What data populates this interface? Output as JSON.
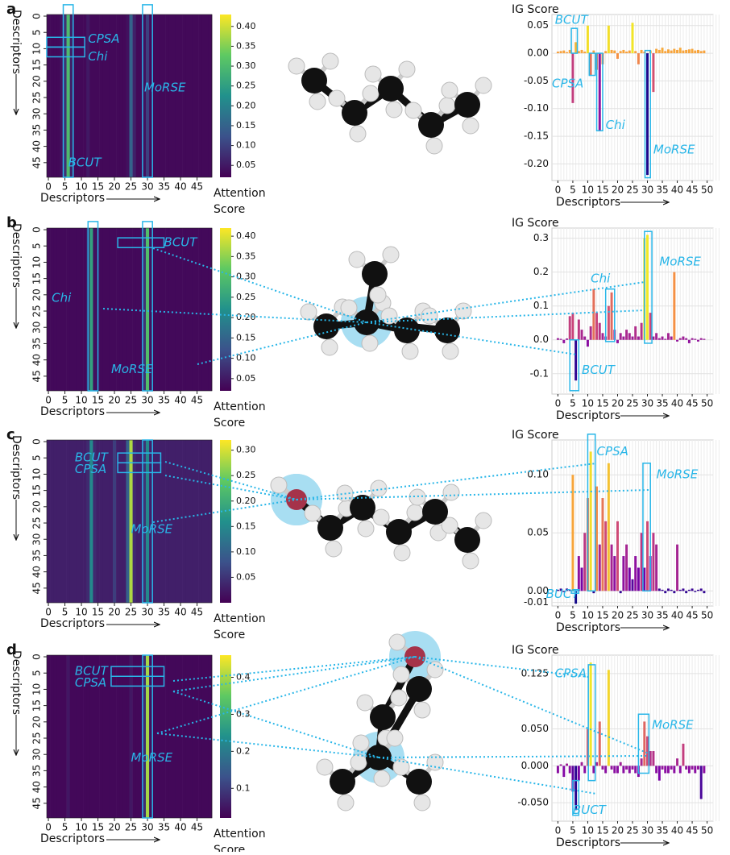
{
  "chart_data": [
    {
      "type": "heatmap",
      "panel": "a",
      "xlabel": "Descriptors",
      "ylabel": "Descriptors",
      "colorbar_label": "Attention Score",
      "xlim": [
        -0.5,
        49.5
      ],
      "ylim": [
        -0.5,
        49.5
      ],
      "xticks": [
        0,
        5,
        10,
        15,
        20,
        25,
        30,
        35,
        40,
        45
      ],
      "yticks": [
        0,
        5,
        10,
        15,
        20,
        25,
        30,
        35,
        40,
        45
      ],
      "values": [
        0.03,
        0.03,
        0.03,
        0.03,
        0.04,
        0.08,
        0.3,
        0.06,
        0.03,
        0.03,
        0.03,
        0.03,
        0.05,
        0.03,
        0.03,
        0.03,
        0.03,
        0.03,
        0.03,
        0.03,
        0.03,
        0.03,
        0.03,
        0.03,
        0.04,
        0.15,
        0.06,
        0.03,
        0.03,
        0.04,
        0.1,
        0.03,
        0.03,
        0.03,
        0.03,
        0.03,
        0.03,
        0.03,
        0.03,
        0.03,
        0.03,
        0.03,
        0.03,
        0.03,
        0.03,
        0.03,
        0.03,
        0.03,
        0.03,
        0.03
      ],
      "clim": [
        0.02,
        0.43
      ],
      "cticks": [
        0.05,
        {
          "value": 0.1,
          "label": "0.10"
        },
        0.15,
        {
          "value": 0.2,
          "label": "0.20"
        },
        0.25,
        {
          "value": 0.3,
          "label": "0.30"
        },
        0.35,
        {
          "value": 0.4,
          "label": "0.40"
        }
      ],
      "colormap": [
        "#440154",
        "#3b528b",
        "#21918c",
        "#5ec962",
        "#fde725"
      ],
      "annotations": [
        "CPSA",
        "Chi",
        "MoRSE",
        "BCUT"
      ]
    },
    {
      "type": "bar",
      "ylabel": "IG Score",
      "xlabel": "Descriptors",
      "xlim": [
        -2,
        52
      ],
      "xticks": [
        0,
        5,
        10,
        15,
        20,
        25,
        30,
        35,
        40,
        45,
        50
      ],
      "ylim": [
        -0.23,
        0.07
      ],
      "yticks": [
        0.05,
        {
          "value": 0,
          "label": "0.00"
        },
        -0.05,
        {
          "value": -0.1,
          "label": "-0.10"
        },
        -0.15,
        {
          "value": -0.2,
          "label": "-0.20"
        }
      ],
      "values": [
        0.003,
        0.004,
        0.005,
        0.002,
        0.006,
        -0.09,
        0.02,
        0.004,
        0.006,
        0.003,
        0.05,
        -0.04,
        0.005,
        -0.03,
        -0.14,
        -0.02,
        0.004,
        0.05,
        0.006,
        0.005,
        -0.01,
        0.004,
        0.006,
        0.003,
        0.005,
        0.055,
        0.004,
        -0.02,
        0.006,
        0.003,
        -0.22,
        0.005,
        -0.07,
        0.008,
        0.006,
        0.01,
        0.004,
        0.007,
        0.005,
        0.008,
        0.006,
        0.01,
        0.005,
        0.006,
        0.007,
        0.008,
        0.005,
        0.006,
        0.004,
        0.005
      ],
      "colormap": [
        "#0d0887",
        "#7e03a8",
        "#cc4778",
        "#f89540",
        "#f0f921"
      ],
      "grid": true,
      "annotations": [
        "BCUT",
        "CPSA",
        "Chi",
        "MoRSE"
      ]
    },
    {
      "type": "heatmap",
      "panel": "b",
      "xlabel": "Descriptors",
      "ylabel": "Descriptors",
      "colorbar_label": "Attention Score",
      "xlim": [
        -0.5,
        49.5
      ],
      "ylim": [
        -0.5,
        49.5
      ],
      "xticks": [
        0,
        5,
        10,
        15,
        20,
        25,
        30,
        35,
        40,
        45
      ],
      "yticks": [
        0,
        5,
        10,
        15,
        20,
        25,
        30,
        35,
        40,
        45
      ],
      "values": [
        0.03,
        0.03,
        0.03,
        0.03,
        0.03,
        0.03,
        0.03,
        0.03,
        0.03,
        0.03,
        0.03,
        0.03,
        0.06,
        0.25,
        0.04,
        0.03,
        0.03,
        0.03,
        0.03,
        0.03,
        0.03,
        0.03,
        0.03,
        0.03,
        0.03,
        0.03,
        0.03,
        0.03,
        0.03,
        0.08,
        0.3,
        0.04,
        0.03,
        0.03,
        0.03,
        0.03,
        0.03,
        0.03,
        0.03,
        0.03,
        0.03,
        0.03,
        0.03,
        0.03,
        0.03,
        0.03,
        0.03,
        0.03,
        0.03,
        0.03
      ],
      "clim": [
        0.02,
        0.42
      ],
      "cticks": [
        0.05,
        {
          "value": 0.1,
          "label": "0.10"
        },
        0.15,
        {
          "value": 0.2,
          "label": "0.20"
        },
        0.25,
        {
          "value": 0.3,
          "label": "0.30"
        },
        0.35,
        {
          "value": 0.4,
          "label": "0.40"
        }
      ],
      "colormap": [
        "#440154",
        "#3b528b",
        "#21918c",
        "#5ec962",
        "#fde725"
      ],
      "annotations": [
        "BCUT",
        "Chi",
        "MoRSE"
      ]
    },
    {
      "type": "bar",
      "ylabel": "IG Score",
      "xlabel": "Descriptors",
      "xlim": [
        -2,
        52
      ],
      "xticks": [
        0,
        5,
        10,
        15,
        20,
        25,
        30,
        35,
        40,
        45,
        50
      ],
      "ylim": [
        -0.16,
        0.33
      ],
      "yticks": [
        0.3,
        0.2,
        0.1,
        {
          "value": 0,
          "label": "0.0"
        },
        -0.1
      ],
      "values": [
        0.005,
        0.003,
        -0.01,
        0.004,
        0.07,
        0.08,
        -0.12,
        0.06,
        0.03,
        0.01,
        -0.02,
        0.04,
        0.15,
        0.08,
        0.05,
        0.02,
        0.01,
        0.1,
        0.14,
        0.03,
        -0.01,
        0.02,
        0.01,
        0.03,
        0.02,
        0.01,
        0.04,
        0.01,
        0.05,
        0.3,
        0.31,
        0.08,
        0.01,
        0.02,
        0.005,
        0.01,
        0.003,
        0.02,
        0.01,
        0.2,
        -0.005,
        0.005,
        0.01,
        0.005,
        -0.01,
        0.005,
        0.003,
        -0.005,
        0.005,
        0.003
      ],
      "colormap": [
        "#0d0887",
        "#7e03a8",
        "#cc4778",
        "#f89540",
        "#f0f921"
      ],
      "grid": true,
      "annotations": [
        "Chi",
        "MoRSE",
        "BCUT"
      ]
    },
    {
      "type": "heatmap",
      "panel": "c",
      "xlabel": "Descriptors",
      "ylabel": "Descriptors",
      "colorbar_label": "Attention Score",
      "xlim": [
        -0.5,
        49.5
      ],
      "ylim": [
        -0.5,
        49.5
      ],
      "xticks": [
        0,
        5,
        10,
        15,
        20,
        25,
        30,
        35,
        40,
        45
      ],
      "yticks": [
        0,
        5,
        10,
        15,
        20,
        25,
        30,
        35,
        40,
        45
      ],
      "values": [
        0.03,
        0.03,
        0.03,
        0.03,
        0.03,
        0.03,
        0.03,
        0.03,
        0.03,
        0.03,
        0.03,
        0.03,
        0.04,
        0.15,
        0.04,
        0.03,
        0.03,
        0.03,
        0.03,
        0.03,
        0.06,
        0.03,
        0.03,
        0.03,
        0.1,
        0.28,
        0.04,
        0.03,
        0.03,
        0.05,
        0.15,
        0.03,
        0.03,
        0.03,
        0.03,
        0.03,
        0.03,
        0.03,
        0.03,
        0.03,
        0.03,
        0.03,
        0.03,
        0.03,
        0.03,
        0.03,
        0.03,
        0.03,
        0.03,
        0.03
      ],
      "clim": [
        0.0,
        0.32
      ],
      "cticks": [
        0.05,
        {
          "value": 0.1,
          "label": "0.10"
        },
        0.15,
        {
          "value": 0.2,
          "label": "0.20"
        },
        0.25,
        {
          "value": 0.3,
          "label": "0.30"
        }
      ],
      "colormap": [
        "#440154",
        "#3b528b",
        "#21918c",
        "#5ec962",
        "#fde725"
      ],
      "annotations": [
        "BCUT",
        "CPSA",
        "MoRSE"
      ]
    },
    {
      "type": "bar",
      "ylabel": "IG Score",
      "xlabel": "Descriptors",
      "xlim": [
        -2,
        52
      ],
      "xticks": [
        0,
        5,
        10,
        15,
        20,
        25,
        30,
        35,
        40,
        45,
        50
      ],
      "ylim": [
        -0.013,
        0.13
      ],
      "yticks": [
        {
          "value": 0.1,
          "label": "0.10"
        },
        0.05,
        {
          "value": 0,
          "label": "0.00"
        },
        -0.01
      ],
      "values": [
        0.001,
        0.002,
        -0.001,
        0.002,
        0.001,
        0.1,
        -0.011,
        0.03,
        0.02,
        0.05,
        0.08,
        0.12,
        -0.002,
        0.09,
        0.04,
        0.08,
        0.06,
        0.11,
        0.04,
        0.03,
        0.06,
        -0.002,
        0.03,
        0.04,
        0.02,
        0.01,
        0.03,
        0.02,
        0.05,
        0.02,
        0.06,
        0.03,
        0.05,
        0.04,
        0.002,
        0.001,
        -0.002,
        0.002,
        0.001,
        -0.002,
        0.04,
        0.001,
        0.002,
        -0.002,
        0.001,
        0.002,
        -0.001,
        0.001,
        0.002,
        -0.002
      ],
      "colormap": [
        "#0d0887",
        "#7e03a8",
        "#cc4778",
        "#f89540",
        "#f0f921"
      ],
      "grid": true,
      "annotations": [
        "CPSA",
        "MoRSE",
        "BUCT"
      ]
    },
    {
      "type": "heatmap",
      "panel": "d",
      "xlabel": "Descriptors",
      "ylabel": "Descriptors",
      "colorbar_label": "Attention Score",
      "xlim": [
        -0.5,
        49.5
      ],
      "ylim": [
        -0.5,
        49.5
      ],
      "xticks": [
        0,
        5,
        10,
        15,
        20,
        25,
        30,
        35,
        40,
        45
      ],
      "yticks": [
        0,
        5,
        10,
        15,
        20,
        25,
        30,
        35,
        40,
        45
      ],
      "values": [
        0.03,
        0.03,
        0.03,
        0.03,
        0.03,
        0.03,
        0.05,
        0.03,
        0.03,
        0.03,
        0.03,
        0.03,
        0.03,
        0.03,
        0.03,
        0.03,
        0.03,
        0.03,
        0.03,
        0.03,
        0.03,
        0.03,
        0.03,
        0.03,
        0.03,
        0.05,
        0.03,
        0.03,
        0.03,
        0.08,
        0.4,
        0.04,
        0.03,
        0.03,
        0.03,
        0.03,
        0.03,
        0.03,
        0.03,
        0.03,
        0.03,
        0.03,
        0.03,
        0.03,
        0.03,
        0.03,
        0.03,
        0.03,
        0.03,
        0.03
      ],
      "clim": [
        0.02,
        0.46
      ],
      "cticks": [
        0.1,
        0.2,
        0.3,
        0.4
      ],
      "colormap": [
        "#440154",
        "#3b528b",
        "#21918c",
        "#5ec962",
        "#fde725"
      ],
      "annotations": [
        "BCUT",
        "CPSA",
        "MoRSE"
      ]
    },
    {
      "type": "bar",
      "ylabel": "IG Score",
      "xlabel": "Descriptors",
      "xlim": [
        -2,
        52
      ],
      "xticks": [
        0,
        5,
        10,
        15,
        20,
        25,
        30,
        35,
        40,
        45,
        50
      ],
      "ylim": [
        -0.075,
        0.15
      ],
      "yticks": [
        0.125,
        {
          "value": 0.05,
          "label": "0.050"
        },
        {
          "value": 0,
          "label": "0.000"
        },
        {
          "value": -0.05,
          "label": "-0.050"
        }
      ],
      "values": [
        -0.01,
        0.002,
        -0.015,
        0.003,
        -0.01,
        -0.035,
        -0.06,
        -0.02,
        0.005,
        -0.01,
        0.05,
        0.14,
        -0.01,
        0.005,
        0.06,
        -0.005,
        -0.01,
        0.13,
        -0.005,
        -0.01,
        -0.01,
        0.005,
        -0.01,
        -0.005,
        -0.01,
        -0.005,
        -0.01,
        -0.015,
        0.01,
        0.06,
        0.04,
        0.02,
        0.02,
        -0.01,
        -0.02,
        -0.005,
        -0.01,
        -0.01,
        -0.005,
        -0.01,
        0.01,
        -0.01,
        0.03,
        -0.005,
        -0.01,
        -0.005,
        -0.01,
        -0.005,
        -0.045,
        -0.01
      ],
      "colormap": [
        "#0d0887",
        "#7e03a8",
        "#cc4778",
        "#f89540",
        "#f0f921"
      ],
      "grid": true,
      "annotations": [
        "CPSA",
        "MoRSE",
        "BUCT"
      ]
    }
  ]
}
